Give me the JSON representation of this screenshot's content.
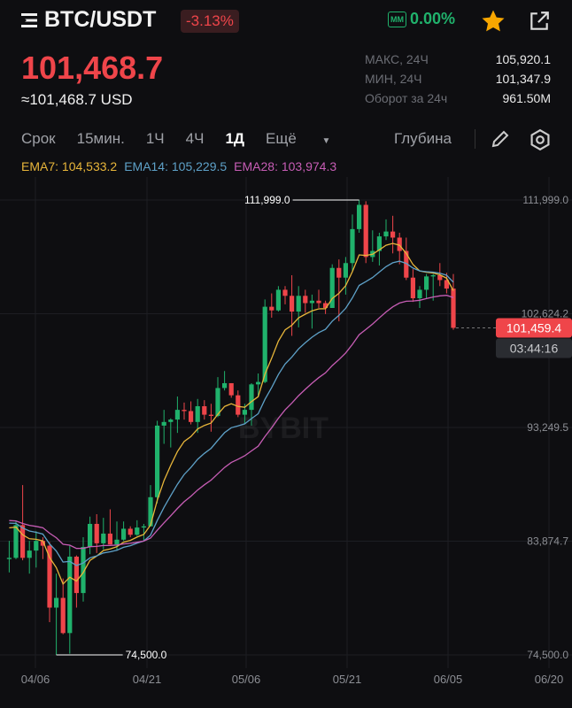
{
  "header": {
    "pair": "BTC/USDT",
    "change": "-3.13%",
    "mm_badge": "MM",
    "mm_value": "0.00%",
    "menu_icon": "menu-icon",
    "favorite_icon": "star-icon",
    "share_icon": "share-icon"
  },
  "price": {
    "last": "101,468.7",
    "usd": "≈101,468.7 USD"
  },
  "stats": [
    {
      "label": "МАКС, 24Ч",
      "value": "105,920.1"
    },
    {
      "label": "МИН, 24Ч",
      "value": "101,347.9"
    },
    {
      "label": "Оборот за 24ч",
      "value": "961.50M"
    }
  ],
  "toolbar": {
    "tabs": [
      "Срок",
      "15мин.",
      "1Ч",
      "4Ч",
      "1Д",
      "Ещё"
    ],
    "active": "1Д",
    "depth": "Глубина",
    "draw_icon": "pencil-icon",
    "settings_icon": "settings-icon"
  },
  "indicators": {
    "ema7": "EMA7: 104,533.2",
    "ema14": "EMA14: 105,229.5",
    "ema28": "EMA28: 103,974.3"
  },
  "colors": {
    "up": "#20b26c",
    "down": "#ef454a",
    "ema7": "#e8b63a",
    "ema14": "#5ea1c8",
    "ema28": "#c75db5"
  },
  "watermark": "BYBIT",
  "chart_data": {
    "type": "candlestick",
    "interval": "1D",
    "y_ticks": [
      "111,999.0",
      "102,624.2",
      "93,249.5",
      "83,874.7",
      "74,500.0"
    ],
    "ylim": [
      74500,
      111999
    ],
    "x_ticks": [
      "04/06",
      "04/21",
      "05/06",
      "05/21",
      "06/05",
      "06/20"
    ],
    "max_label": "111,999.0",
    "min_label": "74,500.0",
    "last_price_label": "101,459.4",
    "countdown": "03:44:16",
    "candles": [
      [
        "03/31",
        82400,
        83900,
        81300,
        82500
      ],
      [
        "04/01",
        82500,
        85500,
        82400,
        85200
      ],
      [
        "04/02",
        85200,
        88500,
        82300,
        82500
      ],
      [
        "04/03",
        82500,
        83900,
        81200,
        83100
      ],
      [
        "04/04",
        83100,
        84700,
        81700,
        83900
      ],
      [
        "04/05",
        83900,
        84200,
        82400,
        83500
      ],
      [
        "04/06",
        83500,
        83800,
        77200,
        78400
      ],
      [
        "04/07",
        78400,
        81200,
        74500,
        79200
      ],
      [
        "04/08",
        79200,
        80800,
        76200,
        76300
      ],
      [
        "04/09",
        76300,
        83500,
        74600,
        82600
      ],
      [
        "04/10",
        82600,
        82700,
        78400,
        79600
      ],
      [
        "04/11",
        79600,
        84200,
        78900,
        83400
      ],
      [
        "04/12",
        83400,
        85900,
        82800,
        85300
      ],
      [
        "04/13",
        85300,
        86100,
        82900,
        83700
      ],
      [
        "04/14",
        83700,
        85800,
        83200,
        84500
      ],
      [
        "04/15",
        84500,
        86500,
        83600,
        83600
      ],
      [
        "04/16",
        83600,
        85500,
        83100,
        84000
      ],
      [
        "04/17",
        84000,
        85500,
        83900,
        84900
      ],
      [
        "04/18",
        84900,
        85100,
        84200,
        84400
      ],
      [
        "04/19",
        84400,
        85600,
        84300,
        85000
      ],
      [
        "04/20",
        85000,
        85300,
        83900,
        85100
      ],
      [
        "04/21",
        85100,
        88500,
        85100,
        87500
      ],
      [
        "04/22",
        87500,
        93800,
        87000,
        93400
      ],
      [
        "04/23",
        93400,
        94700,
        91900,
        93700
      ],
      [
        "04/24",
        93700,
        94000,
        91600,
        93900
      ],
      [
        "04/25",
        93900,
        95800,
        92800,
        94700
      ],
      [
        "04/26",
        94700,
        95300,
        93900,
        94600
      ],
      [
        "04/27",
        94600,
        95400,
        93500,
        93700
      ],
      [
        "04/28",
        93700,
        95600,
        92800,
        95000
      ],
      [
        "04/29",
        95000,
        95500,
        93900,
        94300
      ],
      [
        "04/30",
        94300,
        95200,
        92900,
        94200
      ],
      [
        "05/01",
        94200,
        97400,
        94100,
        96500
      ],
      [
        "05/02",
        96500,
        97900,
        96300,
        96900
      ],
      [
        "05/03",
        96900,
        96900,
        95700,
        95900
      ],
      [
        "05/04",
        95900,
        96300,
        94100,
        94300
      ],
      [
        "05/05",
        94300,
        95200,
        93500,
        94700
      ],
      [
        "05/06",
        94700,
        96900,
        93400,
        96800
      ],
      [
        "05/07",
        96800,
        97700,
        95800,
        97000
      ],
      [
        "05/08",
        97000,
        103800,
        96900,
        103200
      ],
      [
        "05/09",
        103200,
        104300,
        102300,
        102900
      ],
      [
        "05/10",
        102900,
        104900,
        102800,
        104600
      ],
      [
        "05/11",
        104600,
        104900,
        103400,
        104100
      ],
      [
        "05/12",
        104100,
        105800,
        100800,
        102800
      ],
      [
        "05/13",
        102800,
        104900,
        101500,
        104100
      ],
      [
        "05/14",
        104100,
        104600,
        102700,
        103500
      ],
      [
        "05/15",
        103500,
        104200,
        101400,
        103700
      ],
      [
        "05/16",
        103700,
        104600,
        103100,
        103500
      ],
      [
        "05/17",
        103500,
        103700,
        102600,
        103100
      ],
      [
        "05/18",
        103100,
        106700,
        103100,
        106400
      ],
      [
        "05/19",
        106400,
        107100,
        102000,
        105600
      ],
      [
        "05/20",
        105600,
        107300,
        104200,
        106800
      ],
      [
        "05/21",
        106800,
        110800,
        106100,
        109600
      ],
      [
        "05/22",
        109600,
        111999,
        109300,
        111600
      ],
      [
        "05/23",
        111600,
        111900,
        106800,
        107300
      ],
      [
        "05/24",
        107300,
        109500,
        106900,
        107800
      ],
      [
        "05/25",
        107800,
        109300,
        106600,
        109000
      ],
      [
        "05/26",
        109000,
        110400,
        108700,
        109400
      ],
      [
        "05/27",
        109400,
        110700,
        107600,
        108900
      ],
      [
        "05/28",
        108900,
        109300,
        106700,
        107800
      ],
      [
        "05/29",
        107800,
        108900,
        105400,
        105600
      ],
      [
        "05/30",
        105600,
        106300,
        103600,
        103900
      ],
      [
        "05/31",
        103900,
        104900,
        103100,
        104600
      ],
      [
        "06/01",
        104600,
        105900,
        103900,
        105700
      ],
      [
        "06/02",
        105700,
        105900,
        103700,
        105800
      ],
      [
        "06/03",
        105800,
        106800,
        104900,
        105400
      ],
      [
        "06/04",
        105400,
        106000,
        104300,
        104700
      ],
      [
        "06/05",
        104700,
        105900,
        101300,
        101459.4
      ]
    ]
  }
}
